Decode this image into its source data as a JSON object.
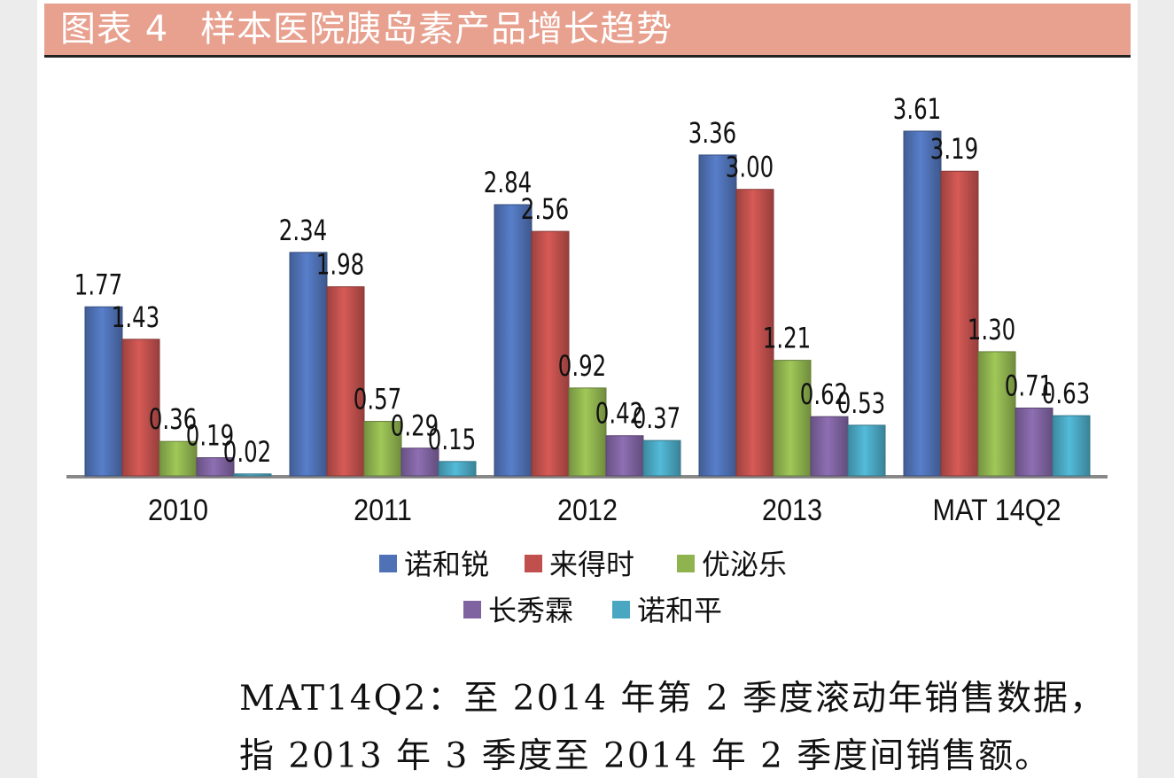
{
  "header": {
    "figure_number": "图表 4",
    "title": "样本医院胰岛素产品增长趋势"
  },
  "chart_data": {
    "type": "bar",
    "title": "",
    "categories": [
      "2010",
      "2011",
      "2012",
      "2013",
      "MAT 14Q2"
    ],
    "series": [
      {
        "name": "诺和锐",
        "color": "#4f71b5",
        "values": [
          1.77,
          2.34,
          2.84,
          3.36,
          3.61
        ]
      },
      {
        "name": "来得时",
        "color": "#c0504d",
        "values": [
          1.43,
          1.98,
          2.56,
          3.0,
          3.19
        ]
      },
      {
        "name": "优泌乐",
        "color": "#8fb34f",
        "values": [
          0.36,
          0.57,
          0.92,
          1.21,
          1.3
        ]
      },
      {
        "name": "长秀霖",
        "color": "#7f63a0",
        "values": [
          0.19,
          0.29,
          0.42,
          0.62,
          0.71
        ]
      },
      {
        "name": "诺和平",
        "color": "#4aa7c2",
        "values": [
          0.02,
          0.15,
          0.37,
          0.53,
          0.63
        ]
      }
    ],
    "data_labels": [
      [
        "1.77",
        "1.43",
        "0.36",
        "0.19",
        "0.02"
      ],
      [
        "2.34",
        "1.98",
        "0.57",
        "0.29",
        "0.15"
      ],
      [
        "2.84",
        "2.56",
        "0.92",
        "0.42",
        "0.37"
      ],
      [
        "3.36",
        "3.00",
        "1.21",
        "0.62",
        "0.53"
      ],
      [
        "3.61",
        "3.19",
        "1.30",
        "0.71",
        "0.63"
      ]
    ],
    "ylim": [
      0,
      3.61
    ],
    "legend_position": "bottom",
    "grid": false
  },
  "notes": {
    "line1": "MAT14Q2：至 2014 年第 2 季度滚动年销售数据，",
    "line2": "指 2013 年 3 季度至 2014 年 2 季度间销售额。"
  }
}
